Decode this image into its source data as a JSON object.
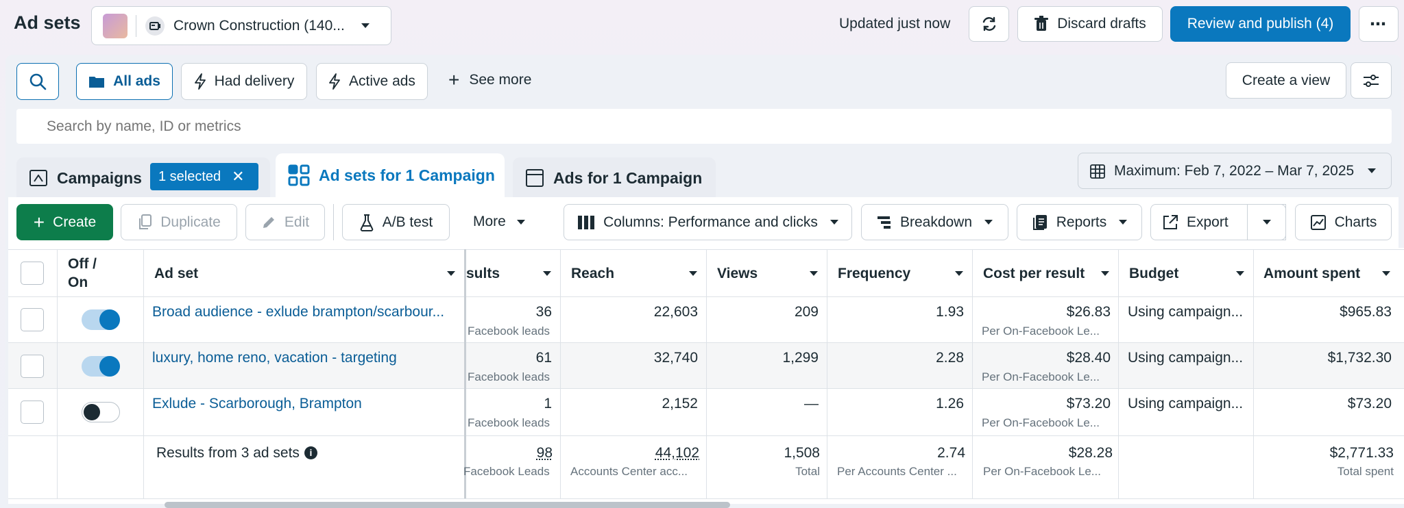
{
  "header": {
    "title": "Ad sets",
    "account_name": "Crown Construction (140...",
    "updated": "Updated just now",
    "discard": "Discard drafts",
    "review": "Review and publish (4)"
  },
  "filters": {
    "all_ads": "All ads",
    "had_delivery": "Had delivery",
    "active_ads": "Active ads",
    "see_more": "See more",
    "create_view": "Create a view"
  },
  "search": {
    "placeholder": "Search by name, ID or metrics"
  },
  "tabs": {
    "campaigns": "Campaigns",
    "selected_badge": "1 selected",
    "ad_sets": "Ad sets for 1 Campaign",
    "ads": "Ads for 1 Campaign",
    "date_range": "Maximum: Feb 7, 2022 – Mar 7, 2025"
  },
  "toolbar": {
    "create": "Create",
    "duplicate": "Duplicate",
    "edit": "Edit",
    "ab_test": "A/B test",
    "more": "More",
    "columns": "Columns: Performance and clicks",
    "breakdown": "Breakdown",
    "reports": "Reports",
    "export": "Export",
    "charts": "Charts"
  },
  "table": {
    "columns": {
      "off_on_1": "Off /",
      "off_on_2": "On",
      "ad_set": "Ad set",
      "results": "sults",
      "reach": "Reach",
      "views": "Views",
      "frequency": "Frequency",
      "cost_per_result": "Cost per result",
      "budget": "Budget",
      "amount_spent": "Amount spent"
    },
    "rows": [
      {
        "name": "Broad audience - exlude brampton/scarbour...",
        "results": "36",
        "results_sub": "Facebook leads",
        "reach": "22,603",
        "views": "209",
        "frequency": "1.93",
        "cpr": "$26.83",
        "cpr_sub": "Per On-Facebook Le...",
        "budget": "Using campaign...",
        "spent": "$965.83",
        "on": true
      },
      {
        "name": "luxury, home reno, vacation - targeting",
        "results": "61",
        "results_sub": "Facebook leads",
        "reach": "32,740",
        "views": "1,299",
        "frequency": "2.28",
        "cpr": "$28.40",
        "cpr_sub": "Per On-Facebook Le...",
        "budget": "Using campaign...",
        "spent": "$1,732.30",
        "on": true
      },
      {
        "name": "Exlude - Scarborough, Brampton",
        "results": "1",
        "results_sub": "Facebook leads",
        "reach": "2,152",
        "views": "—",
        "frequency": "1.26",
        "cpr": "$73.20",
        "cpr_sub": "Per On-Facebook Le...",
        "budget": "Using campaign...",
        "spent": "$73.20",
        "on": false
      }
    ],
    "totals": {
      "label": "Results from 3 ad sets",
      "results": "98",
      "results_sub": "Facebook Leads",
      "reach": "44,102",
      "reach_sub": "Accounts Center acc...",
      "views": "1,508",
      "views_sub": "Total",
      "frequency": "2.74",
      "frequency_sub": "Per Accounts Center ...",
      "cpr": "$28.28",
      "cpr_sub": "Per On-Facebook Le...",
      "spent": "$2,771.33",
      "spent_sub": "Total spent"
    }
  }
}
